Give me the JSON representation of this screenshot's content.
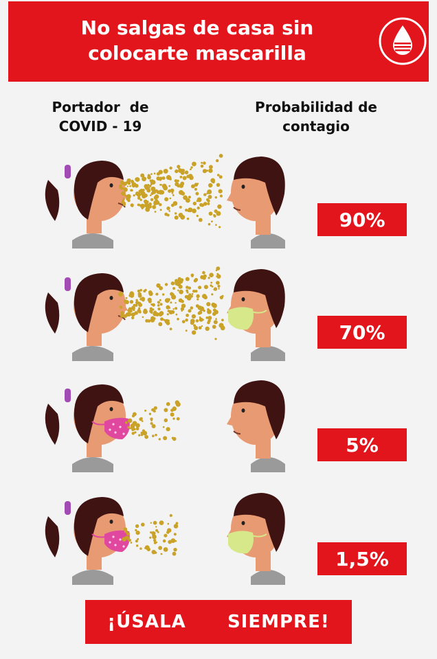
{
  "header": {
    "title_line1": "No salgas de casa sin",
    "title_line2": "colocarte mascarilla",
    "logo_icon": "blood-drop-icon"
  },
  "columns": {
    "left_line1": "Portador  de",
    "left_line2": "COVID - 19",
    "right_line1": "Probabilidad de",
    "right_line2": "contagio"
  },
  "rows": [
    {
      "carrier_mask": false,
      "receiver_mask": false,
      "probability": "90%"
    },
    {
      "carrier_mask": false,
      "receiver_mask": true,
      "probability": "70%"
    },
    {
      "carrier_mask": true,
      "receiver_mask": false,
      "probability": "5%"
    },
    {
      "carrier_mask": true,
      "receiver_mask": true,
      "probability": "1,5%"
    }
  ],
  "cta": "¡ÚSALA   SIEMPRE!",
  "colors": {
    "accent": "#e2141c",
    "particles": "#c9a227",
    "carrier_mask": "#e0479e",
    "receiver_mask": "#d6e88a",
    "hair": "#3e1312",
    "skin": "#e89a73"
  }
}
